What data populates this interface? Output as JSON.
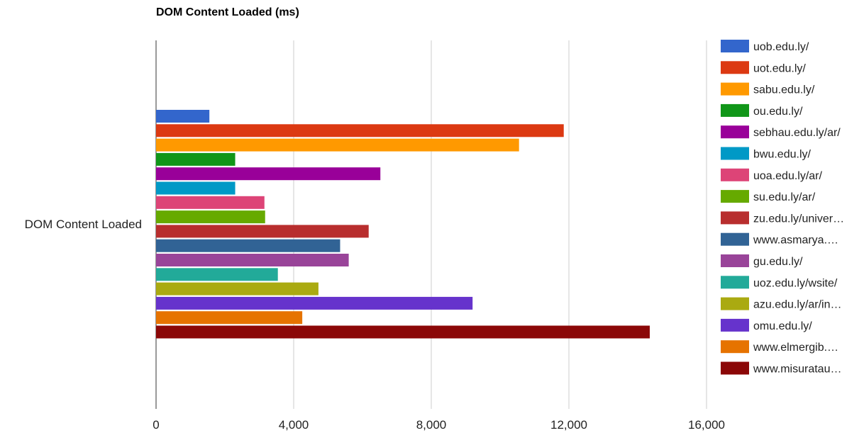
{
  "chart_data": {
    "type": "bar",
    "orientation": "horizontal",
    "title": "DOM Content Loaded (ms)",
    "categories": [
      "DOM Content Loaded"
    ],
    "xlim": [
      0,
      16000
    ],
    "x_ticks": [
      0,
      4000,
      8000,
      12000,
      16000
    ],
    "x_tick_labels": [
      "0",
      "4,000",
      "8,000",
      "12,000",
      "16,000"
    ],
    "grid": true,
    "legend_position": "right",
    "series": [
      {
        "name": "uob.edu.ly/",
        "color": "#3366cc",
        "values": [
          1550
        ]
      },
      {
        "name": "uot.edu.ly/",
        "color": "#dc3912",
        "values": [
          11850
        ]
      },
      {
        "name": "sabu.edu.ly/",
        "color": "#ff9900",
        "values": [
          10550
        ]
      },
      {
        "name": "ou.edu.ly/",
        "color": "#109618",
        "values": [
          2300
        ]
      },
      {
        "name": "sebhau.edu.ly/ar/",
        "color": "#990099",
        "values": [
          6520
        ]
      },
      {
        "name": "bwu.edu.ly/",
        "color": "#0099c6",
        "values": [
          2300
        ]
      },
      {
        "name": "uoa.edu.ly/ar/",
        "color": "#dd4477",
        "values": [
          3150
        ]
      },
      {
        "name": "su.edu.ly/ar/",
        "color": "#66aa00",
        "values": [
          3170
        ]
      },
      {
        "name": "zu.edu.ly/univer…",
        "color": "#b82e2e",
        "values": [
          6180
        ]
      },
      {
        "name": "www.asmarya.…",
        "color": "#316395",
        "values": [
          5350
        ]
      },
      {
        "name": "gu.edu.ly/",
        "color": "#994499",
        "values": [
          5600
        ]
      },
      {
        "name": "uoz.edu.ly/wsite/",
        "color": "#22aa99",
        "values": [
          3540
        ]
      },
      {
        "name": "azu.edu.ly/ar/in…",
        "color": "#aaaa11",
        "values": [
          4720
        ]
      },
      {
        "name": "omu.edu.ly/",
        "color": "#6633cc",
        "values": [
          9200
        ]
      },
      {
        "name": "www.elmergib.…",
        "color": "#e67300",
        "values": [
          4250
        ]
      },
      {
        "name": "www.misuratau…",
        "color": "#8b0707",
        "values": [
          14350
        ]
      }
    ]
  }
}
